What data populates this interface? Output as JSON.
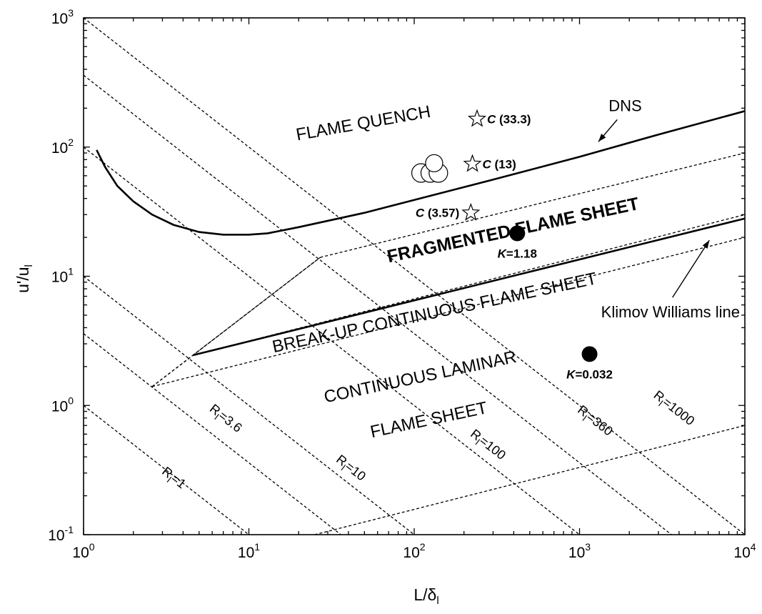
{
  "chart_data": {
    "type": "scatter",
    "xlabel": "L/δl",
    "ylabel": "u'/ul",
    "x_scale": "log",
    "y_scale": "log",
    "xlim": [
      1,
      10000
    ],
    "ylim": [
      0.1,
      1000
    ],
    "x_ticks": [
      {
        "value": 1,
        "base": "10",
        "exp": "0"
      },
      {
        "value": 10,
        "base": "10",
        "exp": "1"
      },
      {
        "value": 100,
        "base": "10",
        "exp": "2"
      },
      {
        "value": 1000,
        "base": "10",
        "exp": "3"
      },
      {
        "value": 10000,
        "base": "10",
        "exp": "4"
      }
    ],
    "y_ticks": [
      {
        "value": 0.1,
        "base": "10",
        "exp": "-1"
      },
      {
        "value": 1,
        "base": "10",
        "exp": "0"
      },
      {
        "value": 10,
        "base": "10",
        "exp": "1"
      },
      {
        "value": 100,
        "base": "10",
        "exp": "2"
      },
      {
        "value": 1000,
        "base": "10",
        "exp": "3"
      }
    ],
    "grid": false,
    "legend": "none",
    "regions": [
      {
        "text": "FLAME QUENCH",
        "x": 8000,
        "y": 2000,
        "angle": -10,
        "bold": false
      },
      {
        "text": "FRAGMENTED  FLAME SHEET",
        "x": 120,
        "y": 13,
        "angle": -12,
        "bold": true
      },
      {
        "text": "BREAK-UP CONTINUOUS FLAME SHEET",
        "x": 80,
        "y": 4.3,
        "angle": -12,
        "bold": false
      },
      {
        "text": "CONTINUOUS LAMINAR",
        "x": 98,
        "y": 1.25,
        "angle": -12,
        "bold": false
      },
      {
        "text": "FLAME SHEET",
        "x": 145,
        "y": 0.5,
        "angle": -12,
        "bold": false
      }
    ],
    "iso_reynolds_lines": [
      {
        "label": "Rl=1",
        "base": "R",
        "sub": "l",
        "value": "=1",
        "points": [
          [
            1,
            1
          ],
          [
            10,
            0.1
          ]
        ],
        "label_pos": [
          3.4,
          0.26
        ]
      },
      {
        "label": "Rl=3.6",
        "base": "R",
        "sub": "l",
        "value": "=3.6",
        "points": [
          [
            1,
            3.6
          ],
          [
            36,
            0.1
          ]
        ],
        "label_pos": [
          7,
          0.75
        ]
      },
      {
        "label": "Rl=10",
        "base": "R",
        "sub": "l",
        "value": "=10",
        "points": [
          [
            1,
            10
          ],
          [
            100,
            0.1
          ]
        ],
        "label_pos": [
          40,
          0.31
        ]
      },
      {
        "label": "Rl=100",
        "base": "R",
        "sub": "l",
        "value": "=100",
        "points": [
          [
            1,
            100
          ],
          [
            1000,
            0.1
          ]
        ],
        "label_pos": [
          270,
          0.47
        ]
      },
      {
        "label": "Rl=360",
        "base": "R",
        "sub": "l",
        "value": "=360",
        "points": [
          [
            1,
            360
          ],
          [
            3600,
            0.1
          ]
        ],
        "label_pos": [
          1200,
          0.72
        ]
      },
      {
        "label": "Rl=1000",
        "base": "R",
        "sub": "l",
        "value": "=1000",
        "points": [
          [
            1,
            1000
          ],
          [
            10000,
            0.1
          ]
        ],
        "label_pos": [
          3600,
          0.9
        ]
      }
    ],
    "boundary_lines": [
      {
        "style": "dash",
        "points": [
          [
            25,
            0.1
          ],
          [
            10000,
            0.7
          ]
        ]
      },
      {
        "style": "dash",
        "points": [
          [
            2.6,
            1.4
          ],
          [
            10000,
            20
          ]
        ]
      },
      {
        "style": "dash",
        "points": [
          [
            2.6,
            1.4
          ],
          [
            27,
            14
          ]
        ]
      },
      {
        "style": "dash",
        "points": [
          [
            2.6,
            1.4
          ],
          [
            4.6,
            2.45
          ]
        ]
      },
      {
        "style": "dash",
        "points": [
          [
            4.6,
            2.45
          ],
          [
            27,
            14
          ]
        ]
      },
      {
        "style": "dash",
        "points": [
          [
            27,
            14
          ],
          [
            10000,
            90
          ]
        ]
      },
      {
        "style": "dash",
        "points": [
          [
            4.6,
            2.45
          ],
          [
            10000,
            30
          ]
        ]
      }
    ],
    "series": [
      {
        "name": "DNS",
        "style": "solid",
        "points": [
          [
            1.2,
            95
          ],
          [
            1.35,
            70
          ],
          [
            1.6,
            50
          ],
          [
            2,
            38
          ],
          [
            2.6,
            30
          ],
          [
            3.5,
            25
          ],
          [
            5,
            22
          ],
          [
            7,
            21
          ],
          [
            10,
            21
          ],
          [
            13,
            21.5
          ],
          [
            20,
            24
          ],
          [
            50,
            31
          ],
          [
            100,
            39
          ],
          [
            300,
            56
          ],
          [
            1000,
            84
          ],
          [
            3000,
            125
          ],
          [
            10000,
            190
          ]
        ]
      },
      {
        "name": "Klimov Williams line",
        "style": "solid",
        "points": [
          [
            4.6,
            2.45
          ],
          [
            10000,
            28
          ]
        ]
      }
    ],
    "annotations": [
      {
        "text": "DNS",
        "x": 1500,
        "y": 190,
        "arrow_to": [
          1300,
          110
        ]
      },
      {
        "text": "Klimov Williams line",
        "x": 1350,
        "y": 4.8,
        "arrow_to": [
          6100,
          19
        ]
      }
    ],
    "markers": [
      {
        "kind": "star",
        "x": 240,
        "y": 165,
        "name": "C",
        "value": "(33.3)"
      },
      {
        "kind": "star",
        "x": 225,
        "y": 74,
        "name": "C",
        "value": "(13)"
      },
      {
        "kind": "star",
        "x": 220,
        "y": 31,
        "name": "C",
        "value": "(3.57)"
      },
      {
        "kind": "dot",
        "x": 420,
        "y": 21.5,
        "name": "K",
        "value": "=1.18"
      },
      {
        "kind": "dot",
        "x": 1150,
        "y": 2.5,
        "name": "K",
        "value": "=0.032"
      },
      {
        "kind": "circle",
        "x": 110,
        "y": 63,
        "r": 13
      },
      {
        "kind": "circle",
        "x": 125,
        "y": 63,
        "r": 13
      },
      {
        "kind": "circle",
        "x": 140,
        "y": 63,
        "r": 13
      },
      {
        "kind": "circle",
        "x": 132,
        "y": 75,
        "r": 12
      }
    ]
  }
}
